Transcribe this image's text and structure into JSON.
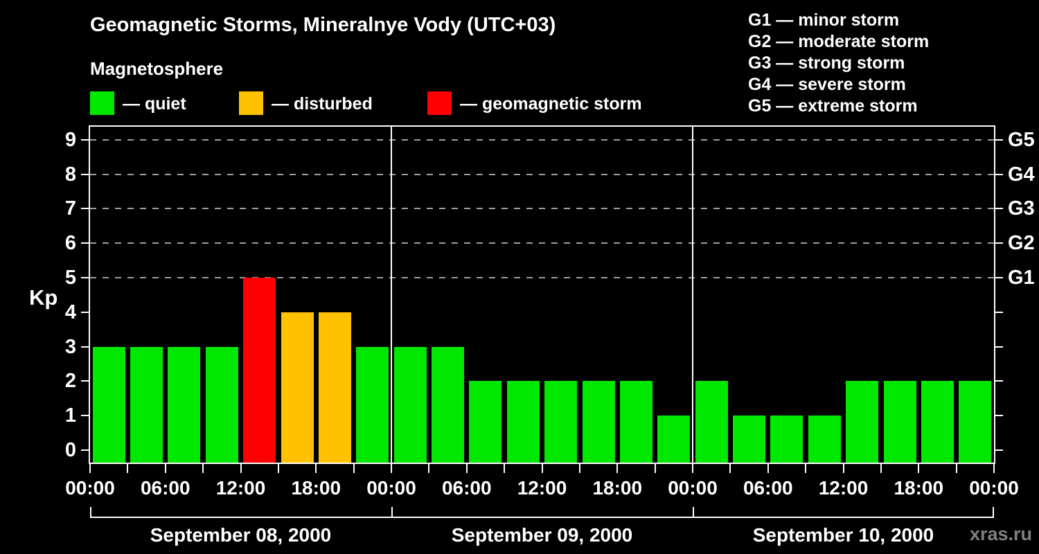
{
  "title": "Geomagnetic Storms, Mineralnye Vody (UTC+03)",
  "subtitle": "Magnetosphere",
  "legend": {
    "items": [
      {
        "name": "quiet",
        "label": "— quiet",
        "color": "#00E800"
      },
      {
        "name": "disturbed",
        "label": "— disturbed",
        "color": "#FFC100"
      },
      {
        "name": "storm",
        "label": "— geomagnetic storm",
        "color": "#FF0000"
      }
    ]
  },
  "storm_scale_legend": [
    "G1 — minor storm",
    "G2 — moderate storm",
    "G3 — strong storm",
    "G4 — severe storm",
    "G5 — extreme storm"
  ],
  "watermark": "xras.ru",
  "chart_data": {
    "type": "bar",
    "title": "Geomagnetic Storms, Mineralnye Vody (UTC+03)",
    "ylabel": "Kp",
    "ylim": [
      0,
      9
    ],
    "yticks": [
      0,
      1,
      2,
      3,
      4,
      5,
      6,
      7,
      8,
      9
    ],
    "gridlines_at": [
      5,
      6,
      7,
      8,
      9
    ],
    "grid_style": "dashed",
    "right_axis_labels": [
      {
        "kp": 5,
        "label": "G1"
      },
      {
        "kp": 6,
        "label": "G2"
      },
      {
        "kp": 7,
        "label": "G3"
      },
      {
        "kp": 8,
        "label": "G4"
      },
      {
        "kp": 9,
        "label": "G5"
      }
    ],
    "x_tick_labels": [
      "00:00",
      "06:00",
      "12:00",
      "18:00",
      "00:00",
      "06:00",
      "12:00",
      "18:00",
      "00:00",
      "06:00",
      "12:00",
      "18:00",
      "00:00"
    ],
    "hours_per_bar": 3,
    "days": [
      {
        "date": "September 08, 2000",
        "values": [
          3,
          3,
          3,
          3,
          5,
          4,
          4,
          3
        ]
      },
      {
        "date": "September 09, 2000",
        "values": [
          3,
          3,
          2,
          2,
          2,
          2,
          2,
          1
        ]
      },
      {
        "date": "September 10, 2000",
        "values": [
          2,
          1,
          1,
          1,
          2,
          2,
          2,
          2
        ]
      }
    ],
    "colors": {
      "quiet": "#00E800",
      "disturbed": "#FFC100",
      "storm": "#FF0000"
    },
    "thresholds": {
      "disturbed_min": 4,
      "storm_min": 5
    },
    "legend_position": "top"
  }
}
